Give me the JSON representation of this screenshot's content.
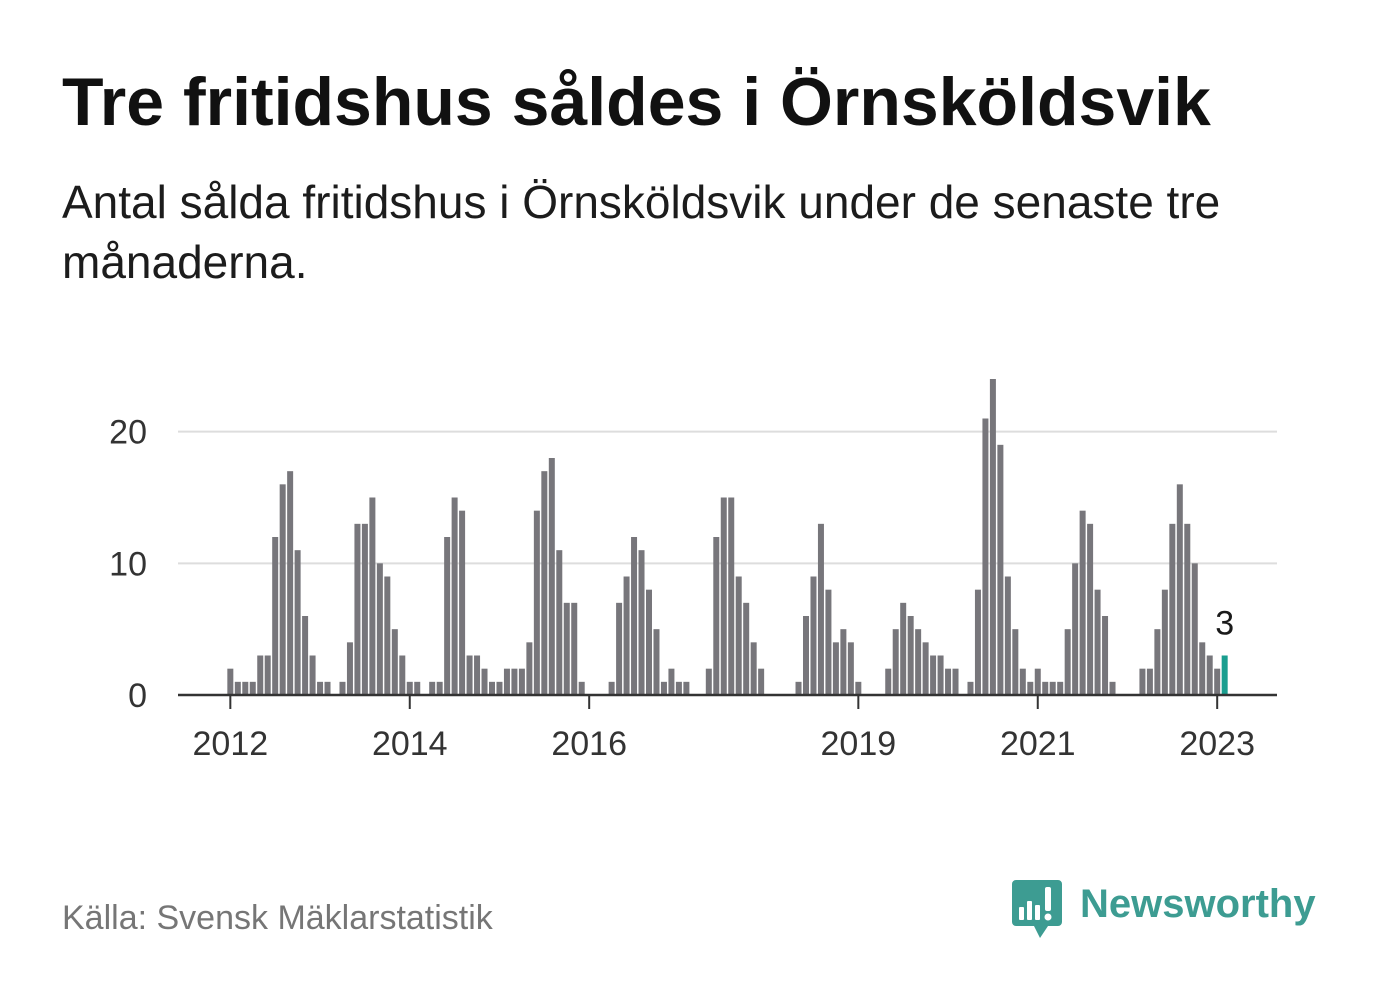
{
  "footer": {
    "source": "Källa: Svensk Mäklarstatistik",
    "brand": "Newsworthy",
    "brand_icon": "newsworthy-logo-icon"
  },
  "colors": {
    "bar": "#77767b",
    "highlight": "#1a9e8f",
    "grid": "#dddddd",
    "axis": "#333333",
    "brand": "#3d9c92"
  },
  "chart_data": {
    "type": "bar",
    "title": "Tre fritidshus såldes i Örnsköldsvik",
    "subtitle": "Antal sålda fritidshus i Örnsköldsvik under de senaste tre månaderna.",
    "x": [
      "2012-01",
      "2012-02",
      "2012-03",
      "2012-04",
      "2012-05",
      "2012-06",
      "2012-07",
      "2012-08",
      "2012-09",
      "2012-10",
      "2012-11",
      "2012-12",
      "2013-01",
      "2013-02",
      "2013-03",
      "2013-04",
      "2013-05",
      "2013-06",
      "2013-07",
      "2013-08",
      "2013-09",
      "2013-10",
      "2013-11",
      "2013-12",
      "2014-01",
      "2014-02",
      "2014-03",
      "2014-04",
      "2014-05",
      "2014-06",
      "2014-07",
      "2014-08",
      "2014-09",
      "2014-10",
      "2014-11",
      "2014-12",
      "2015-01",
      "2015-02",
      "2015-03",
      "2015-04",
      "2015-05",
      "2015-06",
      "2015-07",
      "2015-08",
      "2015-09",
      "2015-10",
      "2015-11",
      "2015-12",
      "2016-01",
      "2016-02",
      "2016-03",
      "2016-04",
      "2016-05",
      "2016-06",
      "2016-07",
      "2016-08",
      "2016-09",
      "2016-10",
      "2016-11",
      "2016-12",
      "2017-01",
      "2017-02",
      "2017-03",
      "2017-04",
      "2017-05",
      "2017-06",
      "2017-07",
      "2017-08",
      "2017-09",
      "2017-10",
      "2017-11",
      "2017-12",
      "2018-01",
      "2018-02",
      "2018-03",
      "2018-04",
      "2018-05",
      "2018-06",
      "2018-07",
      "2018-08",
      "2018-09",
      "2018-10",
      "2018-11",
      "2018-12",
      "2019-01",
      "2019-02",
      "2019-03",
      "2019-04",
      "2019-05",
      "2019-06",
      "2019-07",
      "2019-08",
      "2019-09",
      "2019-10",
      "2019-11",
      "2019-12",
      "2020-01",
      "2020-02",
      "2020-03",
      "2020-04",
      "2020-05",
      "2020-06",
      "2020-07",
      "2020-08",
      "2020-09",
      "2020-10",
      "2020-11",
      "2020-12",
      "2021-01",
      "2021-02",
      "2021-03",
      "2021-04",
      "2021-05",
      "2021-06",
      "2021-07",
      "2021-08",
      "2021-09",
      "2021-10",
      "2021-11",
      "2021-12",
      "2022-01",
      "2022-02",
      "2022-03",
      "2022-04",
      "2022-05",
      "2022-06",
      "2022-07",
      "2022-08",
      "2022-09",
      "2022-10",
      "2022-11",
      "2022-12",
      "2023-01",
      "2023-02"
    ],
    "values": [
      2,
      1,
      1,
      1,
      3,
      3,
      12,
      16,
      17,
      11,
      6,
      3,
      1,
      1,
      0,
      1,
      4,
      13,
      13,
      15,
      10,
      9,
      5,
      3,
      1,
      1,
      0,
      1,
      1,
      12,
      15,
      14,
      3,
      3,
      2,
      1,
      1,
      2,
      2,
      2,
      4,
      14,
      17,
      18,
      11,
      7,
      7,
      1,
      0,
      0,
      0,
      1,
      7,
      9,
      12,
      11,
      8,
      5,
      1,
      2,
      1,
      1,
      0,
      0,
      2,
      12,
      15,
      15,
      9,
      7,
      4,
      2,
      0,
      0,
      0,
      0,
      1,
      6,
      9,
      13,
      8,
      4,
      5,
      4,
      1,
      0,
      0,
      0,
      2,
      5,
      7,
      6,
      5,
      4,
      3,
      3,
      2,
      2,
      0,
      1,
      8,
      21,
      24,
      19,
      9,
      5,
      2,
      1,
      2,
      1,
      1,
      1,
      5,
      10,
      14,
      13,
      8,
      6,
      1,
      0,
      0,
      0,
      2,
      2,
      5,
      8,
      13,
      16,
      13,
      10,
      4,
      3,
      2,
      3
    ],
    "xlim": [
      "2011-06",
      "2023-09"
    ],
    "ylim": [
      0,
      24
    ],
    "x_ticks": [
      "2012",
      "2014",
      "2016",
      "2019",
      "2021",
      "2023"
    ],
    "y_ticks": [
      0,
      10,
      20
    ],
    "grid": true,
    "highlight": {
      "x": "2023-02",
      "label": "3"
    }
  }
}
